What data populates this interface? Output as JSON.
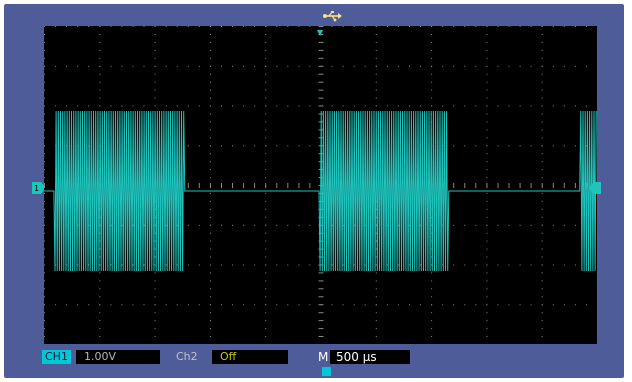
{
  "top_bar": {
    "brand": "",
    "status": "",
    "trigger_status": ""
  },
  "channel1": {
    "tag": "CH1",
    "scale": "1.00V"
  },
  "channel2": {
    "tag": "Ch2",
    "scale": "Off"
  },
  "timebase": {
    "tag": "M",
    "value": "500 µs"
  },
  "colors": {
    "waveform": "#1fc4bd",
    "screen": "#000000",
    "frame": "#4e5c9a",
    "ch1_accent": "#00c8d8",
    "grid_dot": "#8a8a8a"
  },
  "icons": [
    "usb-icon",
    "channel-ground-marker-icon",
    "trigger-position-marker-icon",
    "trigger-level-marker-icon",
    "channel1-indicator-icon"
  ]
}
